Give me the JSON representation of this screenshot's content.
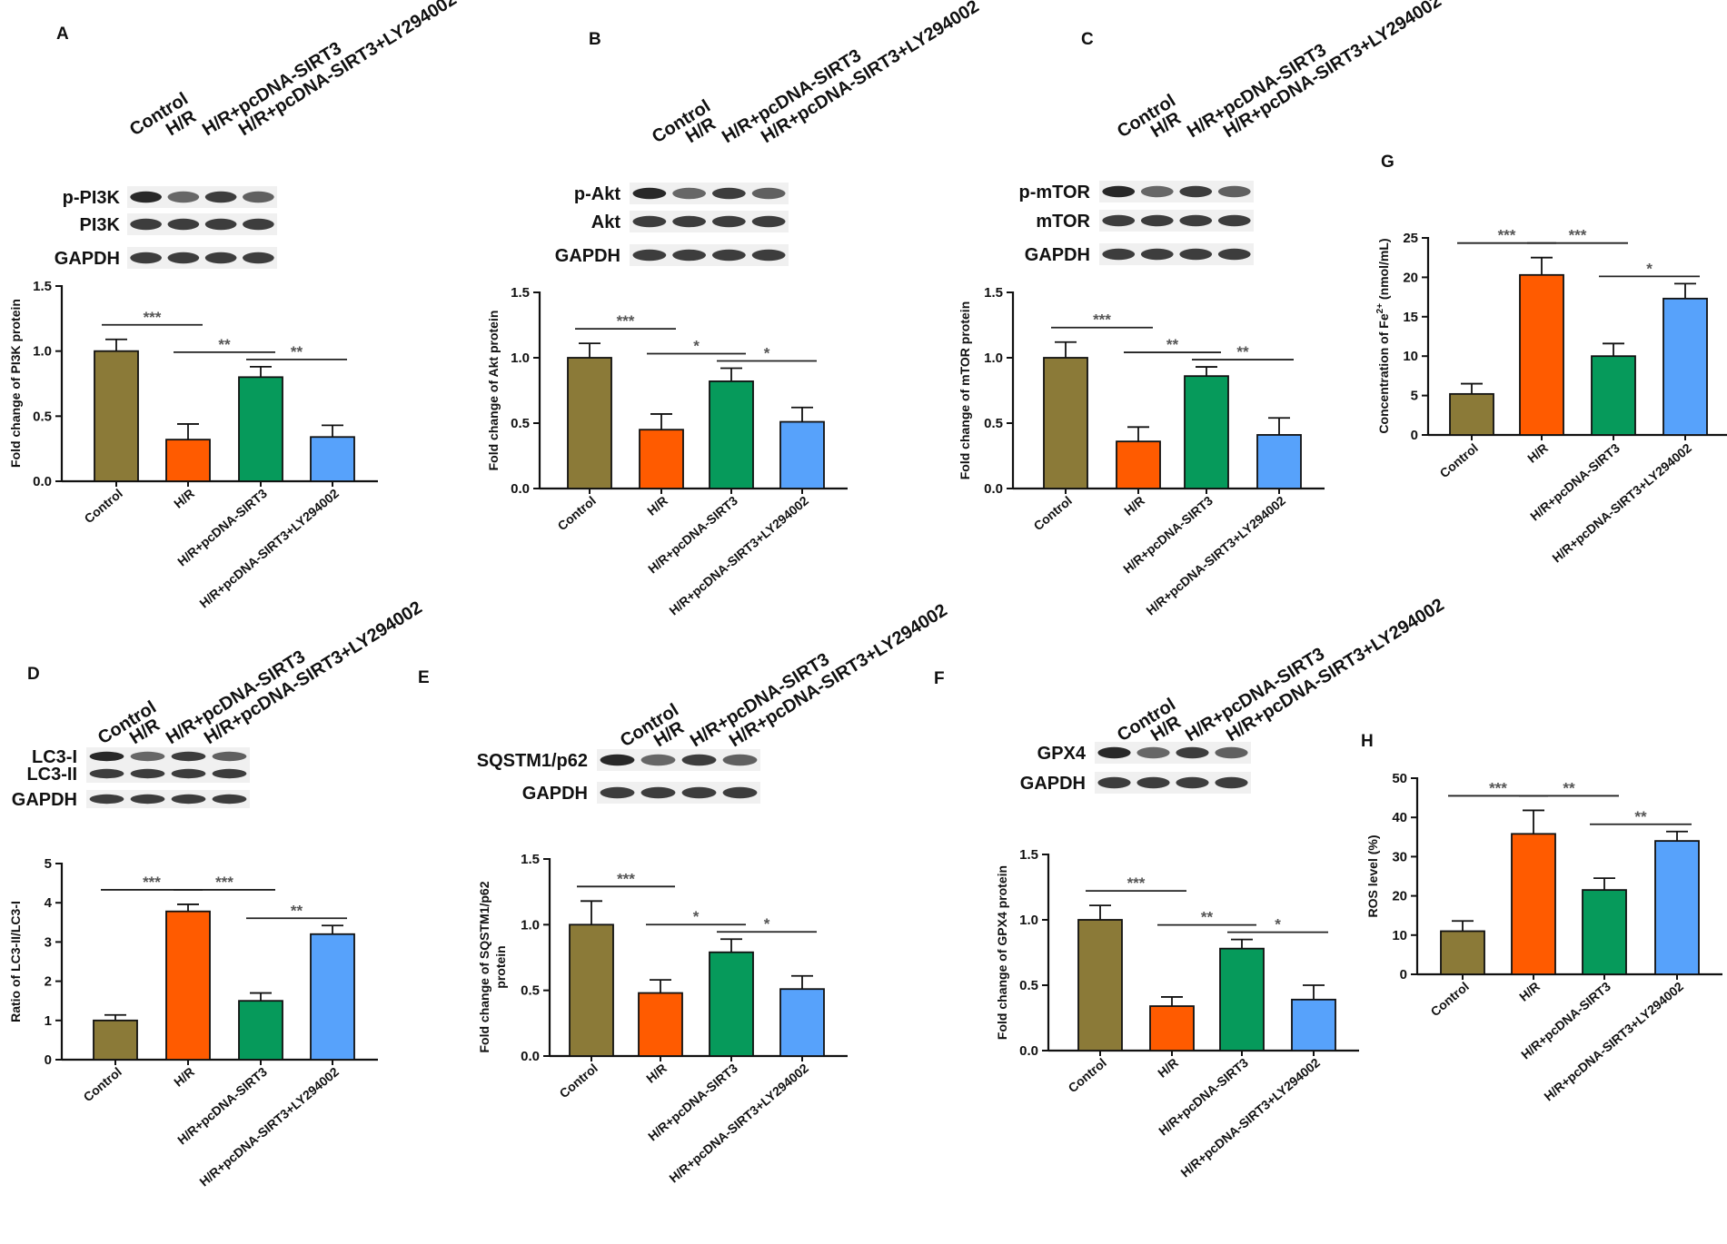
{
  "colors": {
    "Control": "#8b7a38",
    "H/R": "#ff5b00",
    "H/R+pcDNA-SIRT3": "#069a5b",
    "H/R+pcDNA-SIRT3+LY294002": "#57a2fb"
  },
  "blot_panels": [
    {
      "letter": "A",
      "lanes": [
        "Control",
        "H/R",
        "H/R+pcDNA-SIRT3",
        "H/R+pcDNA-SIRT3+LY294002"
      ],
      "rows": [
        "p-PI3K",
        "PI3K",
        "GAPDH"
      ]
    },
    {
      "letter": "B",
      "lanes": [
        "Control",
        "H/R",
        "H/R+pcDNA-SIRT3",
        "H/R+pcDNA-SIRT3+LY294002"
      ],
      "rows": [
        "p-Akt",
        "Akt",
        "GAPDH"
      ]
    },
    {
      "letter": "C",
      "lanes": [
        "Control",
        "H/R",
        "H/R+pcDNA-SIRT3",
        "H/R+pcDNA-SIRT3+LY294002"
      ],
      "rows": [
        "p-mTOR",
        "mTOR",
        "GAPDH"
      ]
    },
    {
      "letter": "D",
      "lanes": [
        "Control",
        "H/R",
        "H/R+pcDNA-SIRT3",
        "H/R+pcDNA-SIRT3+LY294002"
      ],
      "rows": [
        "LC3-I",
        "LC3-II",
        "GAPDH"
      ]
    },
    {
      "letter": "E",
      "lanes": [
        "Control",
        "H/R",
        "H/R+pcDNA-SIRT3",
        "H/R+pcDNA-SIRT3+LY294002"
      ],
      "rows": [
        "SQSTM1/p62",
        "GAPDH"
      ]
    },
    {
      "letter": "F",
      "lanes": [
        "Control",
        "H/R",
        "H/R+pcDNA-SIRT3",
        "H/R+pcDNA-SIRT3+LY294002"
      ],
      "rows": [
        "GPX4",
        "GAPDH"
      ]
    }
  ],
  "chart_data": [
    {
      "panel": "A",
      "type": "bar",
      "ylabel": "Fold change of PI3K protein",
      "categories": [
        "Control",
        "H/R",
        "H/R+pcDNA-SIRT3",
        "H/R+pcDNA-SIRT3+LY294002"
      ],
      "values": [
        1.0,
        0.32,
        0.8,
        0.34
      ],
      "errors": [
        0.09,
        0.12,
        0.08,
        0.09
      ],
      "ylim": [
        0,
        1.5
      ],
      "yticks": [
        0.0,
        0.5,
        1.0,
        1.5
      ],
      "significance": [
        {
          "between": [
            0,
            1
          ],
          "label": "***"
        },
        {
          "between": [
            1,
            2
          ],
          "label": "**"
        },
        {
          "between": [
            2,
            3
          ],
          "label": "**"
        }
      ]
    },
    {
      "panel": "B",
      "type": "bar",
      "ylabel": "Fold change of Akt protein",
      "categories": [
        "Control",
        "H/R",
        "H/R+pcDNA-SIRT3",
        "H/R+pcDNA-SIRT3+LY294002"
      ],
      "values": [
        1.0,
        0.45,
        0.82,
        0.51
      ],
      "errors": [
        0.11,
        0.12,
        0.1,
        0.11
      ],
      "ylim": [
        0,
        1.5
      ],
      "yticks": [
        0.0,
        0.5,
        1.0,
        1.5
      ],
      "significance": [
        {
          "between": [
            0,
            1
          ],
          "label": "***"
        },
        {
          "between": [
            1,
            2
          ],
          "label": "*"
        },
        {
          "between": [
            2,
            3
          ],
          "label": "*"
        }
      ]
    },
    {
      "panel": "C",
      "type": "bar",
      "ylabel": "Fold change of mTOR protein",
      "categories": [
        "Control",
        "H/R",
        "H/R+pcDNA-SIRT3",
        "H/R+pcDNA-SIRT3+LY294002"
      ],
      "values": [
        1.0,
        0.36,
        0.86,
        0.41
      ],
      "errors": [
        0.12,
        0.11,
        0.07,
        0.13
      ],
      "ylim": [
        0,
        1.5
      ],
      "yticks": [
        0.0,
        0.5,
        1.0,
        1.5
      ],
      "significance": [
        {
          "between": [
            0,
            1
          ],
          "label": "***"
        },
        {
          "between": [
            1,
            2
          ],
          "label": "**"
        },
        {
          "between": [
            2,
            3
          ],
          "label": "**"
        }
      ]
    },
    {
      "panel": "G",
      "type": "bar",
      "ylabel": "Concentration of Fe",
      "ylabel_sup": "2+",
      "ylabel_tail": " (nmol/mL)",
      "categories": [
        "Control",
        "H/R",
        "H/R+pcDNA-SIRT3",
        "H/R+pcDNA-SIRT3+LY294002"
      ],
      "values": [
        5.2,
        20.3,
        10.0,
        17.3
      ],
      "errors": [
        1.3,
        2.2,
        1.6,
        1.9
      ],
      "ylim": [
        0,
        25
      ],
      "yticks": [
        0,
        5,
        10,
        15,
        20,
        25
      ],
      "significance": [
        {
          "between": [
            0,
            1
          ],
          "label": "***"
        },
        {
          "between": [
            1,
            2
          ],
          "label": "***"
        },
        {
          "between": [
            2,
            3
          ],
          "label": "*"
        }
      ]
    },
    {
      "panel": "D",
      "type": "bar",
      "ylabel": "Ratio of LC3-II/LC3-I",
      "categories": [
        "Control",
        "H/R",
        "H/R+pcDNA-SIRT3",
        "H/R+pcDNA-SIRT3+LY294002"
      ],
      "values": [
        1.0,
        3.78,
        1.5,
        3.2
      ],
      "errors": [
        0.14,
        0.18,
        0.2,
        0.22
      ],
      "ylim": [
        0,
        5
      ],
      "yticks": [
        0,
        1,
        2,
        3,
        4,
        5
      ],
      "significance": [
        {
          "between": [
            0,
            1
          ],
          "label": "***"
        },
        {
          "between": [
            1,
            2
          ],
          "label": "***"
        },
        {
          "between": [
            2,
            3
          ],
          "label": "**"
        }
      ]
    },
    {
      "panel": "E",
      "type": "bar",
      "ylabel": "Fold change of SQSTM1/p62",
      "ylabel2": "protein",
      "categories": [
        "Control",
        "H/R",
        "H/R+pcDNA-SIRT3",
        "H/R+pcDNA-SIRT3+LY294002"
      ],
      "values": [
        1.0,
        0.48,
        0.79,
        0.51
      ],
      "errors": [
        0.18,
        0.1,
        0.1,
        0.1
      ],
      "ylim": [
        0,
        1.5
      ],
      "yticks": [
        0.0,
        0.5,
        1.0,
        1.5
      ],
      "significance": [
        {
          "between": [
            0,
            1
          ],
          "label": "***"
        },
        {
          "between": [
            1,
            2
          ],
          "label": "*"
        },
        {
          "between": [
            2,
            3
          ],
          "label": "*"
        }
      ]
    },
    {
      "panel": "F",
      "type": "bar",
      "ylabel": "Fold change of GPX4 protein",
      "categories": [
        "Control",
        "H/R",
        "H/R+pcDNA-SIRT3",
        "H/R+pcDNA-SIRT3+LY294002"
      ],
      "values": [
        1.0,
        0.34,
        0.78,
        0.39
      ],
      "errors": [
        0.11,
        0.07,
        0.07,
        0.11
      ],
      "ylim": [
        0,
        1.5
      ],
      "yticks": [
        0.0,
        0.5,
        1.0,
        1.5
      ],
      "significance": [
        {
          "between": [
            0,
            1
          ],
          "label": "***"
        },
        {
          "between": [
            1,
            2
          ],
          "label": "**"
        },
        {
          "between": [
            2,
            3
          ],
          "label": "*"
        }
      ]
    },
    {
      "panel": "H",
      "type": "bar",
      "ylabel": "ROS level (%)",
      "categories": [
        "Control",
        "H/R",
        "H/R+pcDNA-SIRT3",
        "H/R+pcDNA-SIRT3+LY294002"
      ],
      "values": [
        11.0,
        35.8,
        21.5,
        34.0
      ],
      "errors": [
        2.6,
        6.0,
        3.0,
        2.4
      ],
      "ylim": [
        0,
        50
      ],
      "yticks": [
        0,
        10,
        20,
        30,
        40,
        50
      ],
      "significance": [
        {
          "between": [
            0,
            1
          ],
          "label": "***"
        },
        {
          "between": [
            1,
            2
          ],
          "label": "**"
        },
        {
          "between": [
            2,
            3
          ],
          "label": "**"
        }
      ]
    }
  ]
}
